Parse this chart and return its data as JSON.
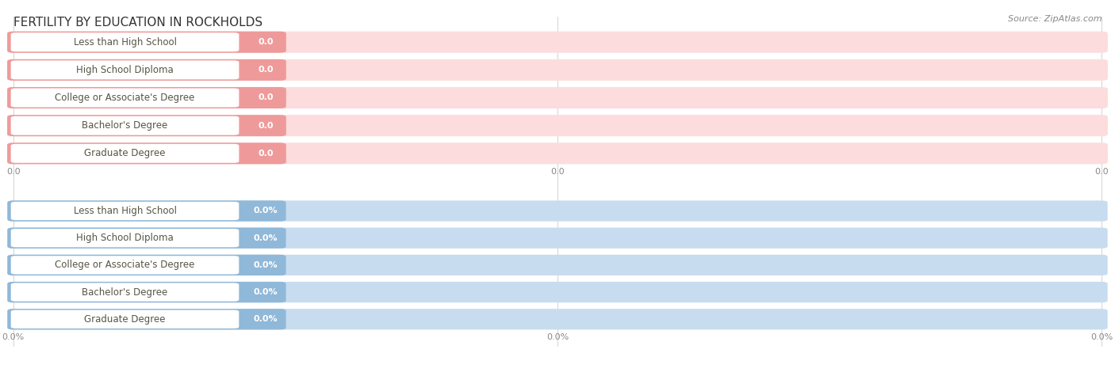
{
  "title": "FERTILITY BY EDUCATION IN ROCKHOLDS",
  "source": "Source: ZipAtlas.com",
  "categories": [
    "Less than High School",
    "High School Diploma",
    "College or Associate's Degree",
    "Bachelor's Degree",
    "Graduate Degree"
  ],
  "top_values": [
    0.0,
    0.0,
    0.0,
    0.0,
    0.0
  ],
  "bottom_values": [
    0.0,
    0.0,
    0.0,
    0.0,
    0.0
  ],
  "top_bar_color": "#EF9A9A",
  "top_bg_color": "#FCDCDC",
  "bottom_bar_color": "#90B8D8",
  "bottom_bg_color": "#C8DCF0",
  "label_text_color": "#555544",
  "value_text_color_top": "#CC6666",
  "value_text_color_bottom": "#6688AA",
  "grid_line_color": "#CCCCCC",
  "tick_label_color": "#888888",
  "background_color": "#FFFFFF",
  "title_color": "#333333",
  "source_color": "#888888",
  "title_fontsize": 11,
  "label_fontsize": 8.5,
  "value_fontsize": 8,
  "tick_fontsize": 8,
  "source_fontsize": 8
}
